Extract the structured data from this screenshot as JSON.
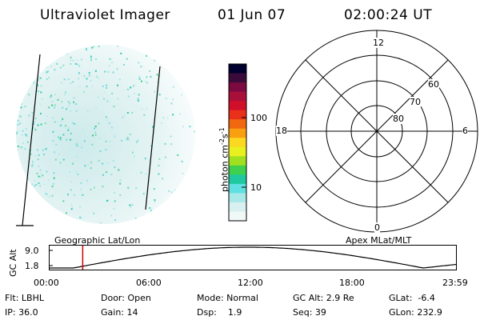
{
  "header": {
    "instrument": "Ultraviolet Imager",
    "date": "01 Jun 07",
    "time": "02:00:24 UT"
  },
  "colorbar": {
    "ticks": [
      "100",
      "10"
    ],
    "unit_main": "photon cm",
    "unit_sup1": "-2",
    "unit_mid": "s",
    "unit_sup2": "-1",
    "colors": [
      "#000030",
      "#3a0a3a",
      "#7a0a40",
      "#a8103a",
      "#d0102a",
      "#e8301a",
      "#f06810",
      "#f8a010",
      "#fcd820",
      "#e8f020",
      "#a0e020",
      "#40d050",
      "#20c8a0",
      "#60e0e0",
      "#a8e8e8",
      "#d8f0f0",
      "#f0f8f8"
    ]
  },
  "polar": {
    "mlt_labels": {
      "top": "12",
      "left": "18",
      "right": "6",
      "bottom": "0"
    },
    "lat_labels": [
      "60",
      "70",
      "80"
    ]
  },
  "timeline": {
    "left_label": "Geographic Lat/Lon",
    "right_label": "Apex MLat/MLT",
    "axis_title": "GC Alt",
    "y_ticks": [
      "9.0",
      "1.8"
    ],
    "x_ticks": [
      "00:00",
      "06:00",
      "12:00",
      "18:00",
      "23:59"
    ],
    "current_time_fraction": 0.0833
  },
  "status": {
    "row1": {
      "flt": "Flt: LBHL",
      "door": "Door: Open",
      "mode": "Mode: Normal",
      "gcalt": "GC Alt: 2.9 Re",
      "glat": "GLat:  -6.4"
    },
    "row2": {
      "ip": "IP: 36.0",
      "gain": "Gain: 14",
      "dsp": "Dsp:    1.9",
      "seq": "Seq: 39",
      "glon": "GLon: 232.9"
    }
  }
}
